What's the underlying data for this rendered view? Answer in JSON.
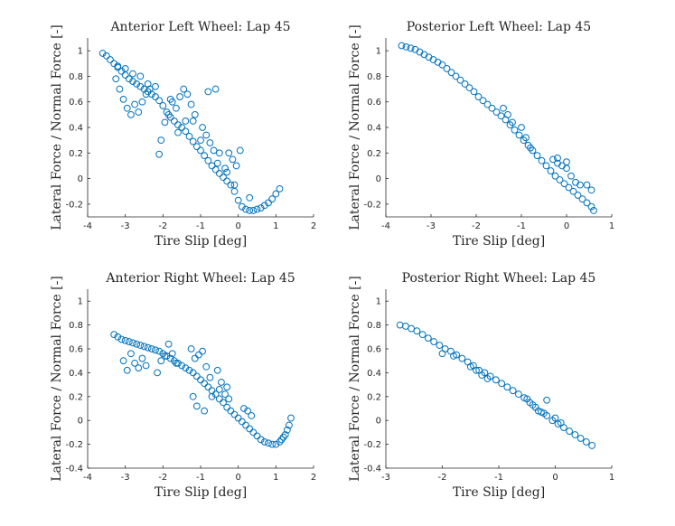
{
  "chart_data": [
    {
      "type": "scatter",
      "title": "Anterior Left Wheel: Lap 45",
      "xlabel": "Tire Slip [deg]",
      "ylabel": "Lateral Force / Normal Force [-]",
      "xlim": [
        -4,
        2
      ],
      "ylim": [
        -0.3,
        1.1
      ],
      "xticks": [
        -4,
        -3,
        -2,
        -1,
        0,
        1,
        2
      ],
      "yticks": [
        -0.2,
        0,
        0.2,
        0.4,
        0.6,
        0.8,
        1
      ],
      "series": [
        {
          "name": "data",
          "color": "#0072BD",
          "x": [
            -3.6,
            -3.5,
            -3.4,
            -3.3,
            -3.2,
            -3.1,
            -3.0,
            -2.9,
            -2.8,
            -2.7,
            -2.6,
            -2.5,
            -2.4,
            -2.3,
            -2.2,
            -2.1,
            -2.0,
            -1.9,
            -1.8,
            -1.7,
            -1.6,
            -1.5,
            -1.4,
            -1.3,
            -1.2,
            -1.1,
            -1.0,
            -0.9,
            -0.8,
            -0.7,
            -0.6,
            -0.5,
            -0.4,
            -0.3,
            -0.2,
            -0.1,
            0.0,
            0.1,
            0.2,
            0.3,
            0.4,
            0.5,
            0.6,
            0.7,
            0.8,
            0.9,
            1.0,
            1.1,
            -3.25,
            -3.15,
            -3.05,
            -2.95,
            -2.85,
            -2.75,
            -2.65,
            -2.55,
            -2.45,
            -2.35,
            -2.05,
            -1.95,
            -1.85,
            -1.75,
            -1.65,
            -1.55,
            -1.45,
            -1.35,
            -1.25,
            -1.15,
            -0.95,
            -0.85,
            -0.75,
            -0.65,
            -0.55,
            -0.35,
            -0.25,
            -0.15,
            -0.05,
            -2.1,
            -1.6,
            -1.2,
            -0.8,
            -0.6,
            -0.3,
            0.05,
            -3.2,
            -3.0,
            -2.8,
            -2.6,
            -2.4,
            -2.2,
            -1.8,
            -1.4,
            -1.0,
            -0.5,
            -0.1,
            0.3
          ],
          "y": [
            0.98,
            0.96,
            0.93,
            0.9,
            0.87,
            0.84,
            0.81,
            0.78,
            0.76,
            0.74,
            0.72,
            0.7,
            0.68,
            0.66,
            0.64,
            0.61,
            0.57,
            0.52,
            0.48,
            0.45,
            0.42,
            0.4,
            0.37,
            0.33,
            0.29,
            0.25,
            0.22,
            0.18,
            0.14,
            0.1,
            0.07,
            0.04,
            0.01,
            -0.02,
            -0.05,
            -0.1,
            -0.17,
            -0.22,
            -0.24,
            -0.25,
            -0.25,
            -0.24,
            -0.23,
            -0.21,
            -0.19,
            -0.16,
            -0.12,
            -0.08,
            0.78,
            0.7,
            0.62,
            0.55,
            0.5,
            0.58,
            0.52,
            0.6,
            0.66,
            0.7,
            0.3,
            0.44,
            0.5,
            0.6,
            0.55,
            0.64,
            0.7,
            0.66,
            0.58,
            0.5,
            0.4,
            0.34,
            0.28,
            0.22,
            0.12,
            0.08,
            0.2,
            0.15,
            0.1,
            0.19,
            0.36,
            0.45,
            0.68,
            0.7,
            0.05,
            0.22,
            0.88,
            0.86,
            0.82,
            0.8,
            0.74,
            0.72,
            0.62,
            0.45,
            0.3,
            0.2,
            -0.05,
            -0.15
          ]
        }
      ]
    },
    {
      "type": "scatter",
      "title": "Posterior Left Wheel: Lap 45",
      "xlabel": "Tire Slip [deg]",
      "ylabel": "Lateral Force / Normal Force [-]",
      "xlim": [
        -4,
        1
      ],
      "ylim": [
        -0.3,
        1.1
      ],
      "xticks": [
        -4,
        -3,
        -2,
        -1,
        0,
        1
      ],
      "yticks": [
        -0.2,
        0,
        0.2,
        0.4,
        0.6,
        0.8,
        1
      ],
      "series": [
        {
          "name": "data",
          "color": "#0072BD",
          "x": [
            -3.65,
            -3.55,
            -3.45,
            -3.35,
            -3.25,
            -3.15,
            -3.05,
            -2.95,
            -2.85,
            -2.75,
            -2.65,
            -2.55,
            -2.45,
            -2.35,
            -2.25,
            -2.15,
            -2.05,
            -1.95,
            -1.85,
            -1.75,
            -1.65,
            -1.55,
            -1.45,
            -1.35,
            -1.25,
            -1.15,
            -1.05,
            -0.95,
            -0.85,
            -0.75,
            -0.65,
            -0.55,
            -0.45,
            -0.35,
            -0.25,
            -0.15,
            -0.05,
            0.05,
            0.15,
            0.25,
            0.35,
            0.45,
            0.55,
            0.6,
            -1.4,
            -1.3,
            -1.2,
            -1.0,
            -0.9,
            -0.8,
            -0.3,
            -0.2,
            -0.1,
            0.0,
            0.1,
            0.2,
            0.3,
            0.45,
            0.55,
            -0.2,
            0.0
          ],
          "y": [
            1.04,
            1.03,
            1.02,
            1.01,
            0.99,
            0.97,
            0.95,
            0.93,
            0.91,
            0.89,
            0.86,
            0.83,
            0.8,
            0.77,
            0.74,
            0.71,
            0.68,
            0.64,
            0.61,
            0.58,
            0.55,
            0.52,
            0.49,
            0.46,
            0.42,
            0.38,
            0.34,
            0.3,
            0.26,
            0.22,
            0.18,
            0.14,
            0.1,
            0.06,
            0.02,
            -0.01,
            -0.04,
            -0.07,
            -0.1,
            -0.13,
            -0.16,
            -0.19,
            -0.22,
            -0.25,
            0.55,
            0.5,
            0.44,
            0.4,
            0.32,
            0.24,
            0.15,
            0.12,
            0.1,
            0.08,
            0.02,
            -0.03,
            -0.05,
            -0.05,
            -0.09,
            0.16,
            0.13
          ]
        }
      ]
    },
    {
      "type": "scatter",
      "title": "Anterior Right Wheel: Lap 45",
      "xlabel": "Tire Slip [deg]",
      "ylabel": "Lateral Force / Normal Force [-]",
      "xlim": [
        -4,
        2
      ],
      "ylim": [
        -0.4,
        1.1
      ],
      "xticks": [
        -4,
        -3,
        -2,
        -1,
        0,
        1,
        2
      ],
      "yticks": [
        -0.4,
        -0.2,
        0,
        0.2,
        0.4,
        0.6,
        0.8,
        1
      ],
      "series": [
        {
          "name": "data",
          "color": "#0072BD",
          "x": [
            -3.3,
            -3.2,
            -3.1,
            -3.0,
            -2.9,
            -2.8,
            -2.7,
            -2.6,
            -2.5,
            -2.4,
            -2.3,
            -2.2,
            -2.1,
            -2.0,
            -1.9,
            -1.8,
            -1.7,
            -1.6,
            -1.5,
            -1.4,
            -1.3,
            -1.2,
            -1.1,
            -1.0,
            -0.9,
            -0.8,
            -0.7,
            -0.6,
            -0.5,
            -0.4,
            -0.3,
            -0.2,
            -0.1,
            0.0,
            0.1,
            0.2,
            0.3,
            0.4,
            0.5,
            0.6,
            0.7,
            0.8,
            0.9,
            1.0,
            1.1,
            1.2,
            1.3,
            1.4,
            -3.05,
            -2.95,
            -2.85,
            -2.75,
            -2.65,
            -2.55,
            -2.45,
            -2.15,
            -2.05,
            -1.95,
            -1.85,
            -1.75,
            -1.65,
            -1.25,
            -1.15,
            -1.05,
            -0.95,
            -0.85,
            -0.75,
            -0.55,
            -0.45,
            -0.35,
            -0.25,
            0.15,
            0.25,
            0.35,
            -1.1,
            -0.9,
            -1.2,
            -0.7,
            -0.5,
            -0.3,
            1.35,
            1.25,
            1.15
          ],
          "y": [
            0.72,
            0.7,
            0.68,
            0.67,
            0.66,
            0.65,
            0.64,
            0.63,
            0.62,
            0.61,
            0.6,
            0.59,
            0.58,
            0.56,
            0.54,
            0.52,
            0.5,
            0.48,
            0.46,
            0.44,
            0.42,
            0.4,
            0.37,
            0.34,
            0.31,
            0.28,
            0.25,
            0.22,
            0.18,
            0.15,
            0.11,
            0.08,
            0.05,
            0.02,
            -0.01,
            -0.04,
            -0.07,
            -0.1,
            -0.13,
            -0.16,
            -0.18,
            -0.19,
            -0.2,
            -0.2,
            -0.18,
            -0.14,
            -0.08,
            0.02,
            0.5,
            0.42,
            0.56,
            0.48,
            0.44,
            0.52,
            0.46,
            0.4,
            0.5,
            0.54,
            0.64,
            0.56,
            0.48,
            0.6,
            0.52,
            0.55,
            0.58,
            0.45,
            0.36,
            0.42,
            0.32,
            0.22,
            0.18,
            0.1,
            0.08,
            0.04,
            0.12,
            0.08,
            0.2,
            0.2,
            0.26,
            0.28,
            -0.04,
            -0.12,
            -0.16
          ]
        }
      ]
    },
    {
      "type": "scatter",
      "title": "Posterior Right Wheel: Lap 45",
      "xlabel": "Tire Slip [deg]",
      "ylabel": "Lateral Force / Normal Force [-]",
      "xlim": [
        -3,
        1
      ],
      "ylim": [
        -0.4,
        1.1
      ],
      "xticks": [
        -3,
        -2,
        -1,
        0,
        1
      ],
      "yticks": [
        -0.4,
        -0.2,
        0,
        0.2,
        0.4,
        0.6,
        0.8,
        1
      ],
      "series": [
        {
          "name": "data",
          "color": "#0072BD",
          "x": [
            -2.75,
            -2.65,
            -2.55,
            -2.45,
            -2.35,
            -2.25,
            -2.15,
            -2.05,
            -1.95,
            -1.85,
            -1.75,
            -1.65,
            -1.55,
            -1.45,
            -1.35,
            -1.25,
            -1.15,
            -1.05,
            -0.95,
            -0.85,
            -0.75,
            -0.65,
            -0.55,
            -0.45,
            -0.35,
            -0.25,
            -0.15,
            -0.05,
            0.05,
            0.15,
            0.25,
            0.35,
            0.45,
            0.55,
            0.65,
            -1.5,
            -1.4,
            -1.3,
            -1.2,
            -0.5,
            -0.4,
            -0.3,
            -0.2,
            -0.15,
            0.0,
            0.1,
            -2.0,
            -1.8
          ],
          "y": [
            0.8,
            0.79,
            0.77,
            0.75,
            0.72,
            0.69,
            0.66,
            0.63,
            0.6,
            0.58,
            0.55,
            0.52,
            0.49,
            0.46,
            0.42,
            0.4,
            0.37,
            0.34,
            0.31,
            0.28,
            0.25,
            0.22,
            0.19,
            0.15,
            0.11,
            0.07,
            0.04,
            0.0,
            -0.03,
            -0.06,
            -0.09,
            -0.12,
            -0.15,
            -0.18,
            -0.21,
            0.45,
            0.42,
            0.38,
            0.35,
            0.18,
            0.13,
            0.08,
            0.06,
            0.17,
            0.02,
            -0.02,
            0.56,
            0.54
          ]
        }
      ]
    }
  ]
}
